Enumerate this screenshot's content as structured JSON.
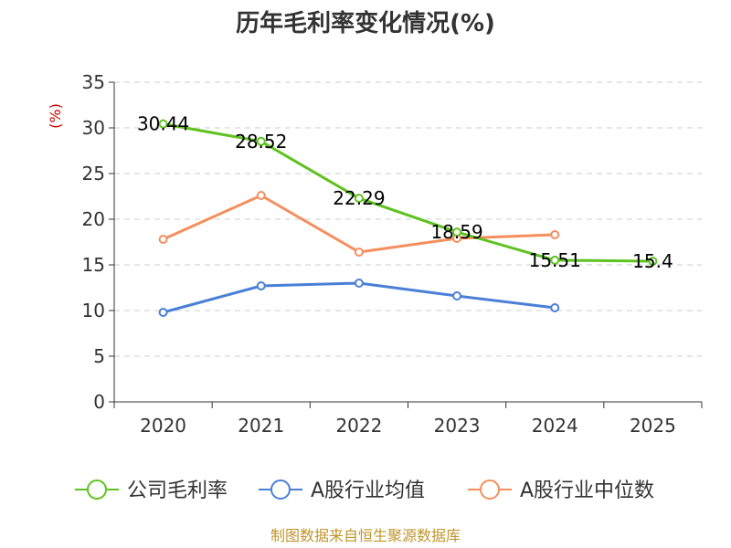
{
  "title": "历年毛利率变化情况(%)",
  "source": "制图数据来自恒生聚源数据库",
  "chart_data": {
    "type": "line",
    "title": "历年毛利率变化情况(%)",
    "xlabel": "",
    "ylabel": "(%)",
    "ylim": [
      0,
      35
    ],
    "yticks": [
      0,
      5,
      10,
      15,
      20,
      25,
      30,
      35
    ],
    "categories": [
      "2020",
      "2021",
      "2022",
      "2023",
      "2024",
      "2025"
    ],
    "grid": true,
    "legend_position": "bottom",
    "series": [
      {
        "name": "公司毛利率",
        "color": "#5ec220",
        "values": [
          30.44,
          28.52,
          22.29,
          18.59,
          15.51,
          15.4
        ],
        "labels": [
          "30.44",
          "28.52",
          "22.29",
          "18.59",
          "15.51",
          "15.4"
        ]
      },
      {
        "name": "A股行业均值",
        "color": "#4a7fd8",
        "values": [
          9.8,
          12.7,
          13.0,
          11.6,
          10.3,
          null
        ]
      },
      {
        "name": "A股行业中位数",
        "color": "#f58f5d",
        "values": [
          17.8,
          22.6,
          16.4,
          17.9,
          18.3,
          null
        ]
      }
    ]
  }
}
